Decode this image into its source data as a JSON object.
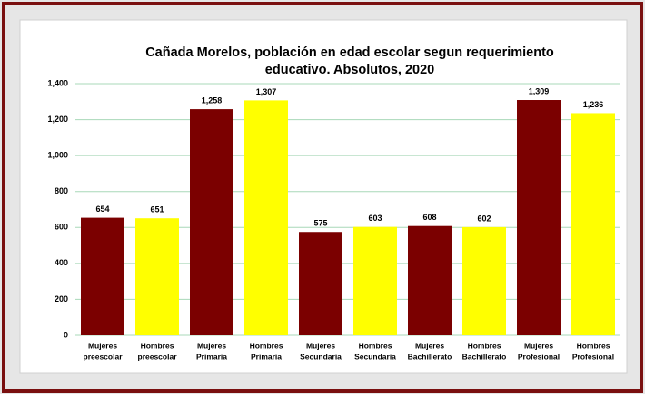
{
  "chart_data": {
    "type": "bar",
    "title": [
      "Cañada Morelos, población en edad escolar segun requerimiento",
      "educativo. Absolutos, 2020"
    ],
    "categories": [
      [
        "Mujeres",
        "preescolar"
      ],
      [
        "Hombres",
        "preescolar"
      ],
      [
        "Mujeres",
        "Primaria"
      ],
      [
        "Hombres",
        "Primaria"
      ],
      [
        "Mujeres",
        "Secundaria"
      ],
      [
        "Hombres",
        "Secundaria"
      ],
      [
        "Mujeres",
        "Bachillerato"
      ],
      [
        "Hombres",
        "Bachillerato"
      ],
      [
        "Mujeres",
        "Profesional"
      ],
      [
        "Hombres",
        "Profesional"
      ]
    ],
    "values": [
      654,
      651,
      1258,
      1307,
      575,
      603,
      608,
      602,
      1309,
      1236
    ],
    "value_labels": [
      "654",
      "651",
      "1,258",
      "1,307",
      "575",
      "603",
      "608",
      "602",
      "1,309",
      "1,236"
    ],
    "colors": [
      "#7b0000",
      "#ffff00",
      "#7b0000",
      "#ffff00",
      "#7b0000",
      "#ffff00",
      "#7b0000",
      "#ffff00",
      "#7b0000",
      "#ffff00"
    ],
    "ylim": [
      0,
      1400
    ],
    "yticks": [
      0,
      200,
      400,
      600,
      800,
      {
        "value": 1000,
        "label": "1,000"
      },
      {
        "value": 1200,
        "label": "1,200"
      },
      {
        "value": 1400,
        "label": "1,400"
      }
    ],
    "grid": true
  }
}
